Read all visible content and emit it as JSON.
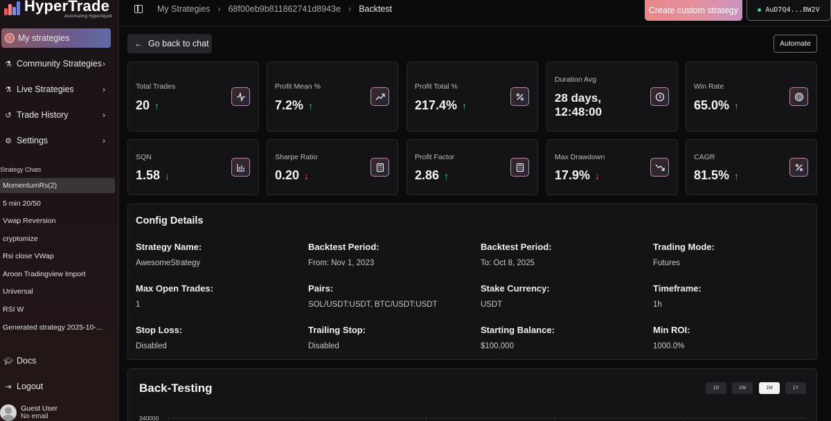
{
  "app": {
    "logo_title": "HyperTrade",
    "logo_subtitle": "Automating Hyperliquid",
    "brand_colors": [
      "#e98787",
      "#c993c0",
      "#6d5a8a"
    ]
  },
  "sidebar": {
    "nav": [
      {
        "label": "My strategies",
        "icon": "warning-icon",
        "active": true
      },
      {
        "label": "Community Strategies",
        "icon": "flask-icon",
        "chevron": true
      },
      {
        "label": "Live Strategies",
        "icon": "flask-icon",
        "chevron": true
      },
      {
        "label": "Trade History",
        "icon": "history-icon",
        "chevron": true
      },
      {
        "label": "Settings",
        "icon": "gear-icon",
        "chevron": true
      }
    ],
    "section_label": "Strategy Chats",
    "chats": [
      "MomentumRs(2)",
      "5 min 20/50",
      "Vwap Reversion",
      "cryptomize",
      "Rsi close VWap",
      "Aroon Tradingview Import",
      "Universal",
      "RSI W",
      "Generated strategy 2025-10-..."
    ],
    "bottom": [
      {
        "label": "Docs",
        "icon": "graduation-cap-icon"
      },
      {
        "label": "Logout",
        "icon": "logout-icon"
      }
    ],
    "user": {
      "name": "Guest User",
      "email": "No email"
    }
  },
  "topbar": {
    "breadcrumbs": [
      "My Strategies",
      "68f00eb9b811862741d8943e",
      "Backtest"
    ],
    "create_label": "Create custom strategy",
    "wallet_label": "AuD7Q4...BW2V"
  },
  "main": {
    "back_label": "Go back to chat",
    "automate_label": "Automate",
    "metrics": [
      {
        "label": "Total Trades",
        "value": "20",
        "trend": "up",
        "icon": "activity-icon"
      },
      {
        "label": "Profit Mean %",
        "value": "7.2%",
        "trend": "up",
        "icon": "trending-up-icon"
      },
      {
        "label": "Profit Total %",
        "value": "217.4%",
        "trend": "up",
        "icon": "percent-icon"
      },
      {
        "label": "Duration Avg",
        "value_line1": "28 days,",
        "value_line2": "12:48:00",
        "icon": "clock-icon"
      },
      {
        "label": "Win Rate",
        "value": "65.0%",
        "trend": "up",
        "icon": "target-icon"
      },
      {
        "label": "SQN",
        "value": "1.58",
        "trend": "down",
        "icon": "bar-chart-icon"
      },
      {
        "label": "Sharpe Ratio",
        "value": "0.20",
        "trend": "down",
        "icon": "calculator-icon"
      },
      {
        "label": "Profit Factor",
        "value": "2.86",
        "trend": "up",
        "icon": "calculator-icon"
      },
      {
        "label": "Max Drawdown",
        "value": "17.9%",
        "trend": "down",
        "icon": "trending-down-icon"
      },
      {
        "label": "CAGR",
        "value": "81.5%",
        "trend": "up",
        "icon": "percent-icon"
      }
    ],
    "config": {
      "title": "Config Details",
      "items": [
        {
          "key": "Strategy Name:",
          "value": "AwesomeStrategy"
        },
        {
          "key": "Backtest Period:",
          "value": "From: Nov 1, 2023"
        },
        {
          "key": "Backtest Period:",
          "value": "To: Oct 8, 2025"
        },
        {
          "key": "Trading Mode:",
          "value": "Futures"
        },
        {
          "key": "Max Open Trades:",
          "value": "1"
        },
        {
          "key": "Pairs:",
          "value": "SOL/USDT:USDT, BTC/USDT:USDT"
        },
        {
          "key": "Stake Currency:",
          "value": "USDT"
        },
        {
          "key": "Timeframe:",
          "value": "1h"
        },
        {
          "key": "Stop Loss:",
          "value": "Disabled"
        },
        {
          "key": "Trailing Stop:",
          "value": "Disabled"
        },
        {
          "key": "Starting Balance:",
          "value": "$100,000"
        },
        {
          "key": "Min ROI:",
          "value": "1000.0%"
        }
      ]
    },
    "backtesting": {
      "title": "Back-Testing",
      "ranges": [
        "1D",
        "1W",
        "1M",
        "1Y"
      ],
      "active_range": "1M",
      "y_tick": "340000"
    }
  },
  "colors": {
    "up": "#35d07f",
    "down": "#f0604a"
  }
}
